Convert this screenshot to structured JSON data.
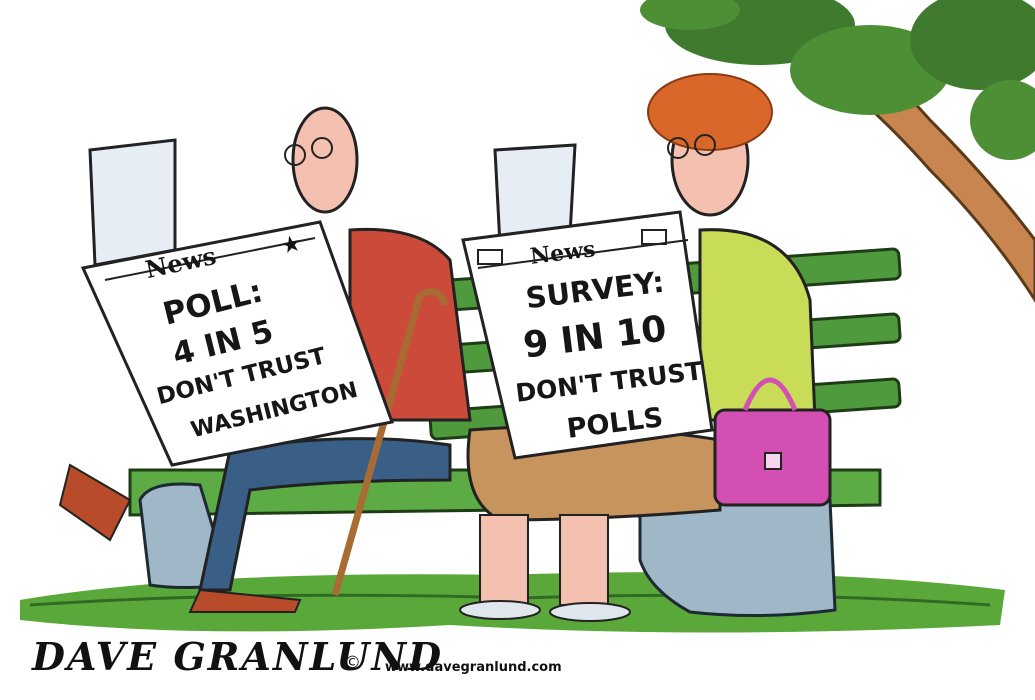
{
  "cartoon": {
    "left_paper": {
      "masthead": "News",
      "star_glyph": "★",
      "headline": [
        "POLL:",
        "4 IN 5",
        "DON'T TRUST",
        "WASHINGTON"
      ]
    },
    "right_paper": {
      "masthead": "News",
      "headline": [
        "SURVEY:",
        "9 IN 10",
        "DON'T TRUST",
        "POLLS"
      ]
    },
    "signature": "DAVE GRANLUND",
    "copyright_symbol": "©",
    "website": "www.davegranlund.com"
  },
  "colors": {
    "grass": "#5aa83a",
    "bench": "#4f9a3c",
    "vest": "#cc4a3a",
    "hair": "#d9672a",
    "blouse": "#c9dc58",
    "purse": "#d34fb1",
    "paper": "#ffffff",
    "skin": "#f4c0b0",
    "tree": "#3f7a2e"
  }
}
